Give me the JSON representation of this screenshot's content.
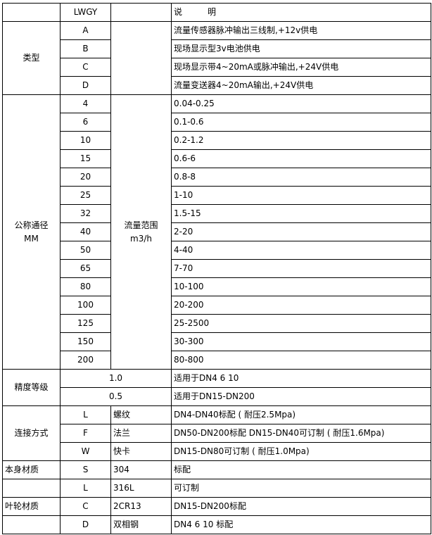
{
  "header": {
    "model": "LWGY",
    "desc": "说　　　明"
  },
  "type": {
    "label": "类型",
    "rows": [
      {
        "code": "A",
        "desc": "流量传感器脉冲输出三线制,+12v供电"
      },
      {
        "code": "B",
        "desc": "现场显示型3v电池供电"
      },
      {
        "code": "C",
        "desc": "现场显示带4~20mA或脉冲输出,+24V供电"
      },
      {
        "code": "D",
        "desc": "流量变送器4~20mA输出,+24V供电"
      }
    ]
  },
  "diameter": {
    "label1": "公称通径",
    "label2": "MM",
    "range_label1": "流量范围",
    "range_label2": "m3/h",
    "rows": [
      {
        "dn": "4",
        "range": "0.04-0.25"
      },
      {
        "dn": "6",
        "range": "0.1-0.6"
      },
      {
        "dn": "10",
        "range": "0.2-1.2"
      },
      {
        "dn": "15",
        "range": "0.6-6"
      },
      {
        "dn": "20",
        "range": "0.8-8"
      },
      {
        "dn": "25",
        "range": "1-10"
      },
      {
        "dn": "32",
        "range": "1.5-15"
      },
      {
        "dn": "40",
        "range": "2-20"
      },
      {
        "dn": "50",
        "range": "4-40"
      },
      {
        "dn": "65",
        "range": "7-70"
      },
      {
        "dn": "80",
        "range": "10-100"
      },
      {
        "dn": "100",
        "range": "20-200"
      },
      {
        "dn": "125",
        "range": "25-2500"
      },
      {
        "dn": "150",
        "range": "30-300"
      },
      {
        "dn": "200",
        "range": "80-800"
      }
    ]
  },
  "accuracy": {
    "label": "精度等级",
    "rows": [
      {
        "grade": "1.0",
        "desc": "适用于DN4  6  10"
      },
      {
        "grade": "0.5",
        "desc": "适用于DN15-DN200"
      }
    ]
  },
  "connection": {
    "label": "连接方式",
    "rows": [
      {
        "code": "L",
        "name": "螺纹",
        "desc": "DN4-DN40标配 ( 耐压2.5Mpa)"
      },
      {
        "code": "F",
        "name": "法兰",
        "desc": "DN50-DN200标配 DN15-DN40可订制 ( 耐压1.6Mpa)"
      },
      {
        "code": "W",
        "name": "快卡",
        "desc": "DN15-DN80可订制  ( 耐压1.0Mpa)"
      }
    ]
  },
  "body_material": {
    "label": "本身材质",
    "rows": [
      {
        "code": "S",
        "name": "304",
        "desc": "标配"
      },
      {
        "code": "L",
        "name": "316L",
        "desc": "可订制"
      }
    ]
  },
  "impeller_material": {
    "label": "叶轮材质",
    "rows": [
      {
        "code": "C",
        "name": "2CR13",
        "desc": "DN15-DN200标配"
      },
      {
        "code": "D",
        "name": "双相钢",
        "desc": "DN4 6 10 标配"
      }
    ]
  }
}
